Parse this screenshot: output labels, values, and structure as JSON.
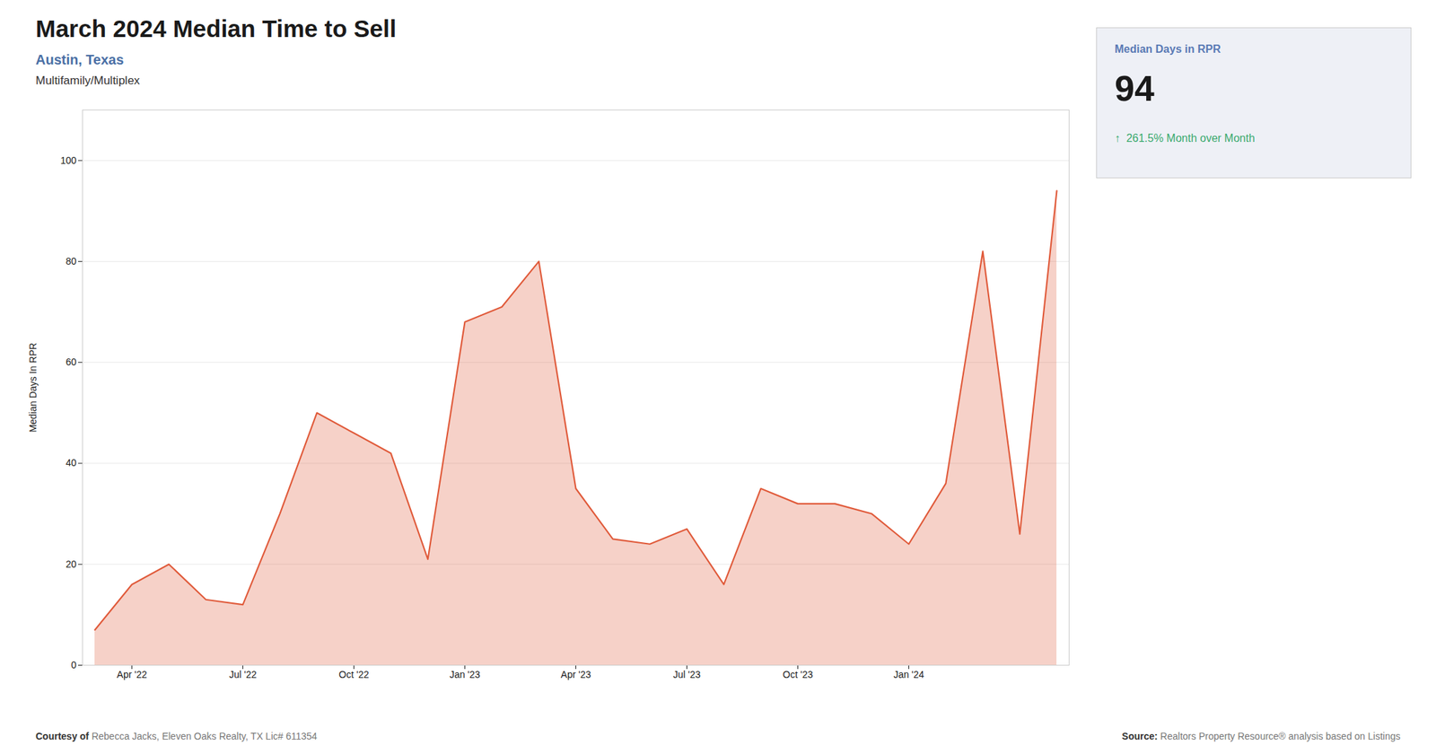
{
  "chart_data": {
    "type": "area",
    "title": "March 2024 Median Time to Sell",
    "subtitle": "Austin, Texas",
    "annotations": [
      "Multifamily/Multiplex",
      "Median Days in RPR",
      "94",
      "↑  261.5% Month over Month",
      "Courtesy of",
      " Rebecca Jacks, Eleven Oaks Realty, TX Lic# 611354",
      "Source:",
      " Realtors Property Resource® analysis based on Listings"
    ],
    "ylabel": "Median Days In RPR",
    "categories": [
      null,
      "Apr '22",
      null,
      null,
      "Jul '22",
      null,
      null,
      "Oct '22",
      null,
      null,
      "Jan '23",
      null,
      null,
      "Apr '23",
      null,
      null,
      "Jul '23",
      null,
      null,
      "Oct '23",
      null,
      null,
      "Jan '24",
      null,
      null,
      null,
      null
    ],
    "values": [
      7,
      16,
      20,
      13,
      12,
      30,
      50,
      46,
      42,
      21,
      68,
      71,
      80,
      35,
      25,
      24,
      27,
      16,
      35,
      32,
      32,
      30,
      24,
      36,
      82,
      26,
      94
    ],
    "color": "#e05a3a",
    "ylim": [
      0,
      110
    ],
    "yticks": [
      0,
      20,
      40,
      60,
      80,
      100
    ],
    "grid": true
  }
}
